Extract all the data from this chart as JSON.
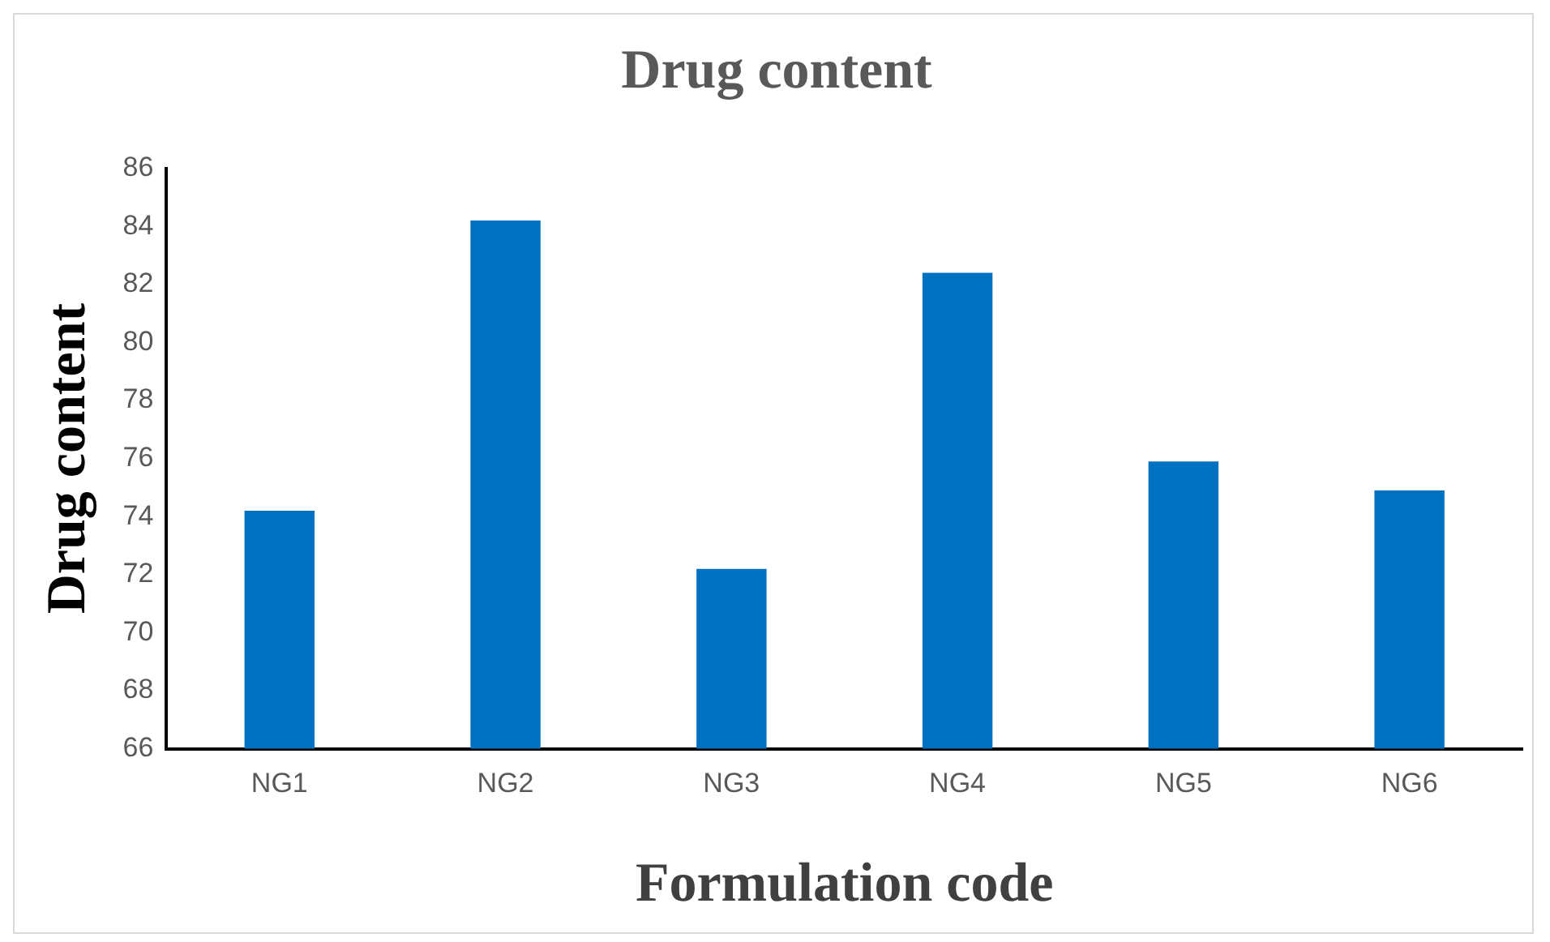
{
  "chart_data": {
    "type": "bar",
    "title": "Drug content",
    "xlabel": "Formulation code",
    "ylabel": "Drug content",
    "categories": [
      "NG1",
      "NG2",
      "NG3",
      "NG4",
      "NG5",
      "NG6"
    ],
    "values": [
      74.2,
      84.2,
      72.2,
      82.4,
      75.9,
      74.9
    ],
    "color": "#0070c0",
    "ylim": [
      66,
      86
    ],
    "yticks": [
      66,
      68,
      70,
      72,
      74,
      76,
      78,
      80,
      82,
      84,
      86
    ],
    "grid": false,
    "legend": false
  }
}
